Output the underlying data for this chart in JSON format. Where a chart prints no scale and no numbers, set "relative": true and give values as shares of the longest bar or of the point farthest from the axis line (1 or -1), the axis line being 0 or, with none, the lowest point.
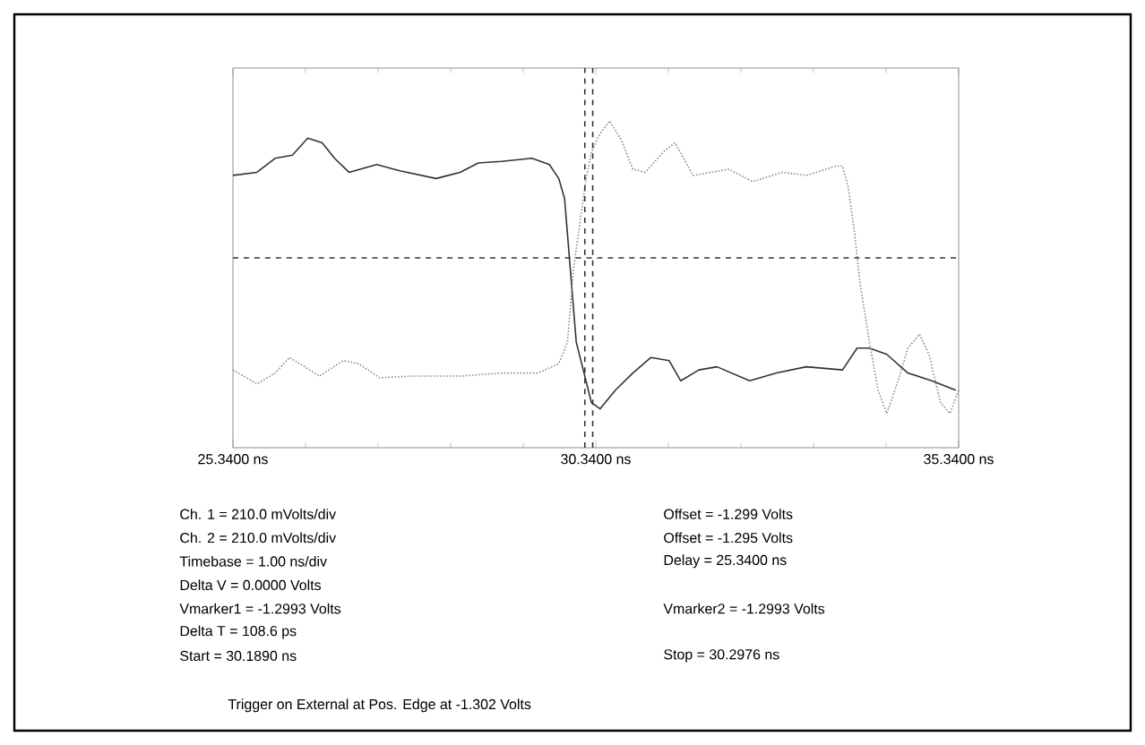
{
  "chart_data": {
    "type": "line",
    "relative": true,
    "xlim": [
      25.34,
      35.34
    ],
    "xticks": [
      {
        "value": 25.34,
        "label": "25.3400 ns"
      },
      {
        "value": 30.34,
        "label": "30.3400 ns"
      },
      {
        "value": 35.34,
        "label": "35.3400 ns"
      }
    ],
    "series": [
      {
        "color": "#333333",
        "line_style": "solid",
        "x": [
          25.34,
          25.67,
          25.92,
          26.16,
          26.37,
          26.57,
          26.74,
          26.94,
          27.32,
          27.64,
          28.14,
          28.47,
          28.72,
          29.04,
          29.46,
          29.7,
          29.83,
          29.91,
          29.99,
          30.07,
          30.28,
          30.4,
          30.61,
          30.85,
          31.1,
          31.35,
          31.51,
          31.76,
          32.01,
          32.46,
          32.83,
          33.24,
          33.74,
          33.94,
          34.11,
          34.35,
          34.64,
          34.97,
          35.3
        ],
        "values": [
          0.53,
          0.55,
          0.64,
          0.66,
          0.77,
          0.74,
          0.64,
          0.55,
          0.6,
          0.56,
          0.51,
          0.55,
          0.61,
          0.62,
          0.64,
          0.6,
          0.51,
          0.38,
          -0.08,
          -0.54,
          -0.93,
          -0.97,
          -0.85,
          -0.74,
          -0.64,
          -0.66,
          -0.79,
          -0.72,
          -0.7,
          -0.79,
          -0.74,
          -0.7,
          -0.72,
          -0.58,
          -0.58,
          -0.62,
          -0.74,
          -0.79,
          -0.85
        ]
      },
      {
        "color": "#8c8c8c",
        "line_style": "dotted",
        "x": [
          25.34,
          25.67,
          25.92,
          26.12,
          26.33,
          26.53,
          26.86,
          27.07,
          27.36,
          27.81,
          28.47,
          29.04,
          29.54,
          29.83,
          29.95,
          30.03,
          30.2,
          30.28,
          30.4,
          30.53,
          30.69,
          30.85,
          31.02,
          31.27,
          31.43,
          31.68,
          31.93,
          32.17,
          32.5,
          32.91,
          33.24,
          33.65,
          33.74,
          33.82,
          33.9,
          33.98,
          34.11,
          34.23,
          34.35,
          34.52,
          34.64,
          34.8,
          34.93,
          35.09,
          35.22,
          35.34
        ],
        "values": [
          -0.72,
          -0.81,
          -0.74,
          -0.64,
          -0.7,
          -0.76,
          -0.66,
          -0.68,
          -0.77,
          -0.76,
          -0.76,
          -0.74,
          -0.74,
          -0.68,
          -0.54,
          -0.08,
          0.49,
          0.68,
          0.8,
          0.88,
          0.76,
          0.57,
          0.55,
          0.68,
          0.74,
          0.53,
          0.55,
          0.57,
          0.49,
          0.55,
          0.53,
          0.59,
          0.59,
          0.45,
          0.18,
          -0.16,
          -0.54,
          -0.85,
          -1.0,
          -0.77,
          -0.58,
          -0.49,
          -0.62,
          -0.93,
          -1.0,
          -0.85
        ]
      }
    ],
    "ref_lines": [
      {
        "axis": "y",
        "value": 0,
        "color": "#333333",
        "line_style": "dashed"
      },
      {
        "axis": "x",
        "value": 30.189,
        "color": "#333333",
        "line_style": "dashed"
      },
      {
        "axis": "x",
        "value": 30.2976,
        "color": "#333333",
        "line_style": "dashed"
      }
    ],
    "annotations": [
      "Ch. 1 = 210.0 mVolts/div",
      "Ch. 2 = 210.0 mVolts/div",
      "Timebase = 1.00 ns/div",
      "Delta V = 0.0000 Volts",
      "Vmarker1 = -1.2993 Volts",
      "Delta T = 108.6 ps",
      "Start = 30.1890 ns",
      "Offset = -1.299 Volts",
      "Offset = -1.295 Volts",
      "Delay = 25.3400 ns",
      "Vmarker2 = -1.2993 Volts",
      "Stop = 30.2976 ns",
      "Trigger on External at Pos. Edge at -1.302 Volts"
    ]
  }
}
